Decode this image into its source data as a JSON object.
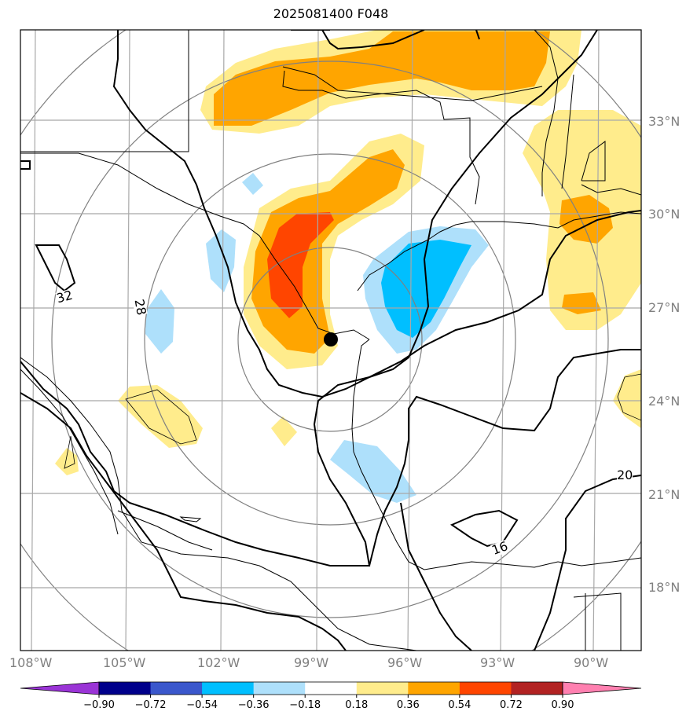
{
  "title": "2025081400 F048",
  "lon_labels": [
    "108°W",
    "105°W",
    "102°W",
    "99°W",
    "96°W",
    "93°W",
    "90°W"
  ],
  "lat_labels": [
    "33°N",
    "30°N",
    "27°N",
    "24°N",
    "21°N",
    "18°N"
  ],
  "contour_labels": [
    "32",
    "28",
    "20",
    "16"
  ],
  "colorbar": {
    "ticks": [
      "−0.90",
      "−0.72",
      "−0.54",
      "−0.36",
      "−0.18",
      "0.18",
      "0.36",
      "0.54",
      "0.72",
      "0.90"
    ],
    "colors": [
      "#9a34d6",
      "#00008b",
      "#3a57cc",
      "#00bfff",
      "#aee0fb",
      "#ffffff",
      "#ffec8c",
      "#ffa500",
      "#ff4500",
      "#b22222",
      "#ff80b0"
    ]
  },
  "storm_center": {
    "name": "storm-center-dot"
  }
}
